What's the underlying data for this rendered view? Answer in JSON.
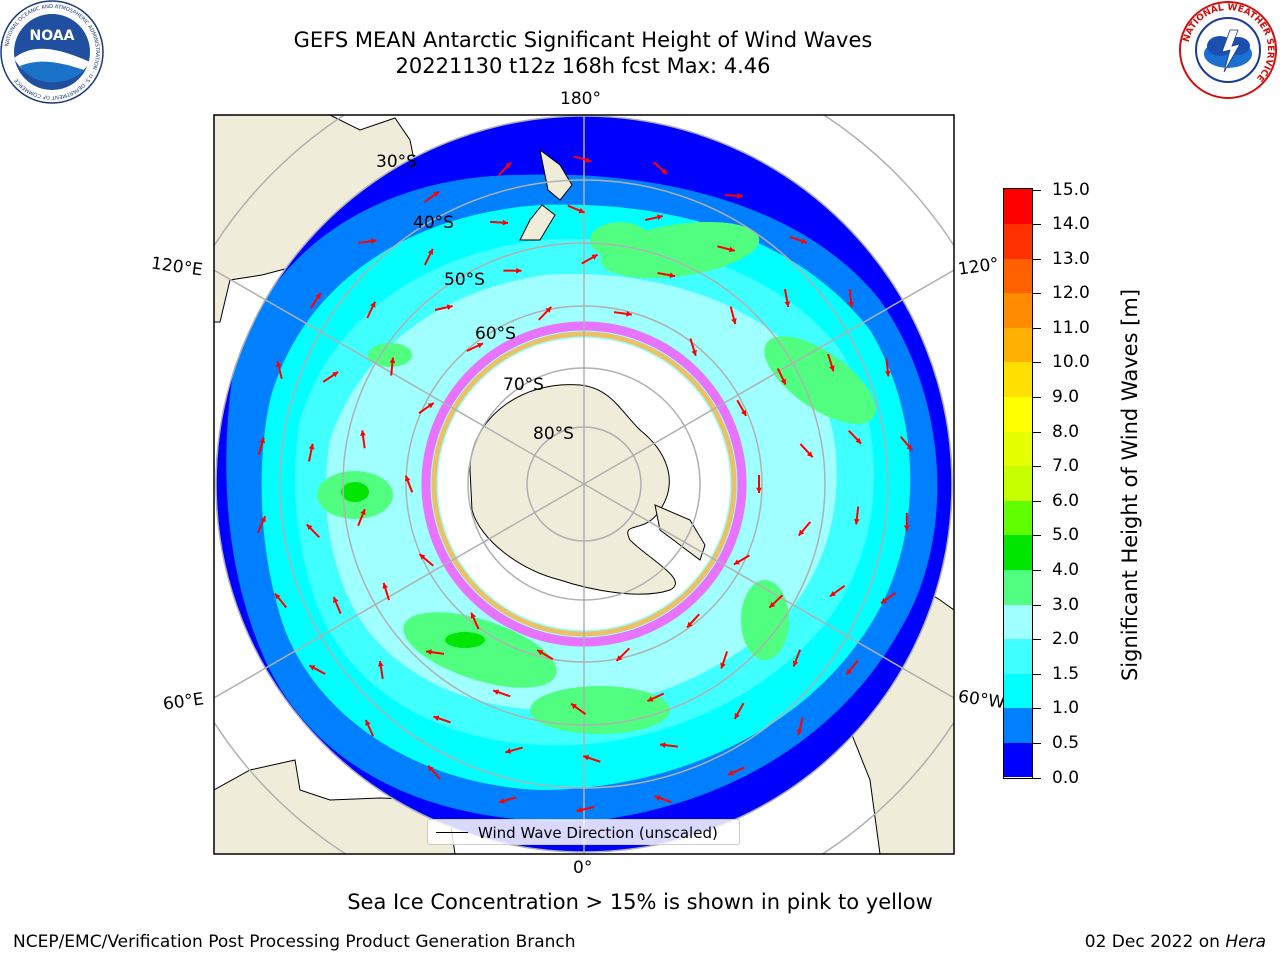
{
  "title": {
    "line1": "GEFS MEAN Antarctic Significant Height of Wind Waves",
    "line2": "20221130 t12z 168h fcst   Max: 4.46"
  },
  "logos": {
    "noaa": {
      "text": "NOAA",
      "ring_text": "NATIONAL OCEANIC AND ATMOSPHERIC ADMINISTRATION · U.S. DEPARTMENT OF COMMERCE"
    },
    "nws": {
      "ring_text": "NATIONAL WEATHER SERVICE"
    }
  },
  "map": {
    "projection": "south-polar-stereographic",
    "longitude_labels": {
      "top": "180°",
      "upper_left": "120°E",
      "upper_right": "120°",
      "lower_left": "60°E",
      "lower_right": "60°W",
      "bottom": "0°"
    },
    "latitude_labels": [
      "30°S",
      "40°S",
      "50°S",
      "60°S",
      "70°S",
      "80°S"
    ],
    "colors": {
      "land": "#efedd9",
      "sea_ice": "#ffffff",
      "graticule": "#b0b0b0",
      "arrow": "#ff0000"
    }
  },
  "legend": {
    "label": "Wind Wave Direction (unscaled)"
  },
  "colorbar": {
    "label": "Significant Height of Wind Waves [m]",
    "ticks": [
      "0.0",
      "0.5",
      "1.0",
      "1.5",
      "2.0",
      "3.0",
      "4.0",
      "5.0",
      "6.0",
      "7.0",
      "8.0",
      "9.0",
      "10.0",
      "11.0",
      "12.0",
      "13.0",
      "14.0",
      "15.0"
    ],
    "colors": [
      "#0000ff",
      "#0080ff",
      "#00ffff",
      "#40ffff",
      "#a0ffff",
      "#50ff80",
      "#00e600",
      "#60ff00",
      "#c8ff00",
      "#e6ff00",
      "#ffff00",
      "#ffe000",
      "#ffb000",
      "#ff8c00",
      "#ff6000",
      "#ff3000",
      "#ff0000"
    ]
  },
  "footer": {
    "note": "Sea Ice Concentration > 15% is shown in pink to yellow",
    "credit": "NCEP/EMC/Verification Post Processing Product Generation Branch",
    "date": "02 Dec 2022 on",
    "host": "Hera"
  }
}
